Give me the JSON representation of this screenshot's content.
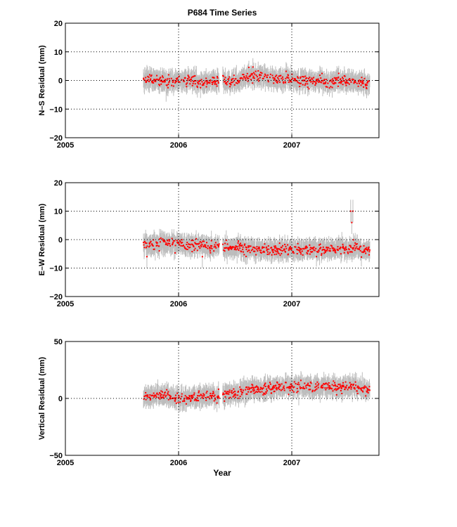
{
  "figure": {
    "title": "P684 Time Series",
    "xlabel": "Year"
  },
  "chart_data": [
    {
      "type": "scatter",
      "name": "north",
      "ylabel": "N–S Residual (mm)",
      "xlim": [
        2005,
        2007.77
      ],
      "ylim": [
        -20,
        20
      ],
      "xticks": [
        2005,
        2006,
        2007
      ],
      "xtick_labels": [
        "2005",
        "2006",
        "2007"
      ],
      "yticks": [
        -20,
        -10,
        0,
        10,
        20
      ],
      "ytick_labels": [
        "−20",
        "−10",
        "0",
        "10",
        "20"
      ],
      "grid": "dotted",
      "data_span": [
        2005.69,
        2007.69
      ],
      "gap": [
        2006.36,
        2006.39
      ],
      "points": [
        [
          2005.7,
          0.5
        ],
        [
          2005.8,
          0.3
        ],
        [
          2005.9,
          -0.5
        ],
        [
          2006.0,
          -0.3
        ],
        [
          2006.1,
          0.0
        ],
        [
          2006.2,
          -0.5
        ],
        [
          2006.3,
          -0.2
        ],
        [
          2006.45,
          -0.5
        ],
        [
          2006.55,
          0.5
        ],
        [
          2006.65,
          2.0
        ],
        [
          2006.75,
          1.0
        ],
        [
          2006.85,
          0.5
        ],
        [
          2006.95,
          0.5
        ],
        [
          2007.05,
          0.0
        ],
        [
          2007.15,
          0.0
        ],
        [
          2007.25,
          -0.5
        ],
        [
          2007.35,
          -0.5
        ],
        [
          2007.45,
          0.0
        ],
        [
          2007.55,
          -0.5
        ],
        [
          2007.65,
          -1.0
        ]
      ],
      "point_color": "#ff0000",
      "errorbar_color": "#bdbdbd"
    },
    {
      "type": "scatter",
      "name": "east",
      "ylabel": "E–W Residual (mm)",
      "xlim": [
        2005,
        2007.77
      ],
      "ylim": [
        -20,
        20
      ],
      "xticks": [
        2005,
        2006,
        2007
      ],
      "xtick_labels": [
        "2005",
        "2006",
        "2007"
      ],
      "yticks": [
        -20,
        -10,
        0,
        10,
        20
      ],
      "ytick_labels": [
        "−20",
        "−10",
        "0",
        "10",
        "20"
      ],
      "grid": "dotted",
      "data_span": [
        2005.69,
        2007.69
      ],
      "gap": [
        2006.36,
        2006.39
      ],
      "points": [
        [
          2005.7,
          -2.0
        ],
        [
          2005.8,
          -1.5
        ],
        [
          2005.9,
          -1.3
        ],
        [
          2006.0,
          -1.5
        ],
        [
          2006.1,
          -2.0
        ],
        [
          2006.2,
          -2.0
        ],
        [
          2006.3,
          -2.5
        ],
        [
          2006.45,
          -3.0
        ],
        [
          2006.55,
          -3.0
        ],
        [
          2006.65,
          -3.5
        ],
        [
          2006.75,
          -3.5
        ],
        [
          2006.85,
          -3.5
        ],
        [
          2006.95,
          -3.8
        ],
        [
          2007.05,
          -4.0
        ],
        [
          2007.15,
          -3.8
        ],
        [
          2007.25,
          -3.5
        ],
        [
          2007.35,
          -3.5
        ],
        [
          2007.45,
          -3.0
        ],
        [
          2007.55,
          -3.0
        ],
        [
          2007.65,
          -4.0
        ]
      ],
      "outliers": [
        [
          2005.72,
          -6.0
        ],
        [
          2006.21,
          -6.0
        ],
        [
          2007.52,
          10.0
        ],
        [
          2007.53,
          6.0
        ],
        [
          2007.54,
          10.0
        ]
      ],
      "point_color": "#ff0000",
      "errorbar_color": "#bdbdbd"
    },
    {
      "type": "scatter",
      "name": "vertical",
      "ylabel": "Vertical Residual (mm)",
      "xlim": [
        2005,
        2007.77
      ],
      "ylim": [
        -50,
        50
      ],
      "xticks": [
        2005,
        2006,
        2007
      ],
      "xtick_labels": [
        "2005",
        "2006",
        "2007"
      ],
      "yticks": [
        -50,
        0,
        50
      ],
      "ytick_labels": [
        "−50",
        "0",
        "50"
      ],
      "grid": "dotted",
      "data_span": [
        2005.69,
        2007.69
      ],
      "gap": [
        2006.36,
        2006.39
      ],
      "points": [
        [
          2005.7,
          2.0
        ],
        [
          2005.8,
          3.0
        ],
        [
          2005.9,
          2.0
        ],
        [
          2006.0,
          0.0
        ],
        [
          2006.1,
          0.0
        ],
        [
          2006.2,
          2.0
        ],
        [
          2006.3,
          2.0
        ],
        [
          2006.45,
          4.0
        ],
        [
          2006.55,
          6.0
        ],
        [
          2006.65,
          8.0
        ],
        [
          2006.75,
          8.0
        ],
        [
          2006.85,
          9.0
        ],
        [
          2006.95,
          10.0
        ],
        [
          2007.05,
          10.0
        ],
        [
          2007.15,
          10.0
        ],
        [
          2007.25,
          10.0
        ],
        [
          2007.35,
          9.0
        ],
        [
          2007.45,
          9.0
        ],
        [
          2007.55,
          10.0
        ],
        [
          2007.65,
          8.0
        ]
      ],
      "point_color": "#ff0000",
      "errorbar_color": "#bdbdbd"
    }
  ]
}
